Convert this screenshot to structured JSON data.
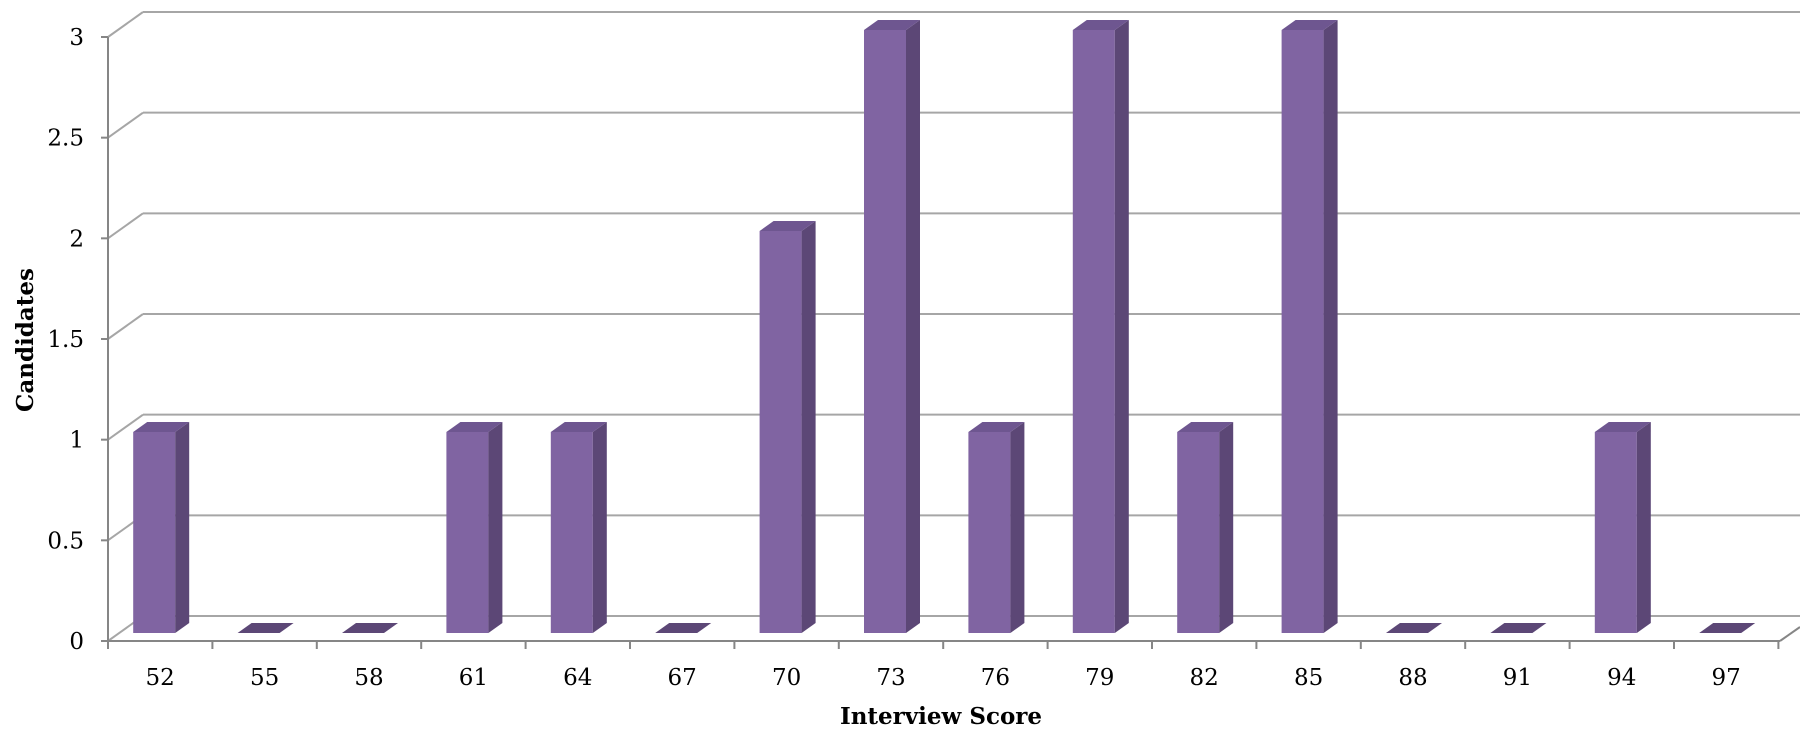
{
  "chart_data": {
    "type": "bar",
    "style": "3d-column",
    "categories": [
      "52",
      "55",
      "58",
      "61",
      "64",
      "67",
      "70",
      "73",
      "76",
      "79",
      "82",
      "85",
      "88",
      "91",
      "94",
      "97"
    ],
    "values": [
      1,
      0,
      0,
      1,
      1,
      0,
      2,
      3,
      1,
      3,
      1,
      3,
      0,
      0,
      1,
      0
    ],
    "yticks": [
      "0",
      "0.5",
      "1",
      "1.5",
      "2",
      "2.5",
      "3"
    ],
    "xlabel": "Interview Score",
    "ylabel": "Candidates",
    "ylim": [
      0,
      3
    ],
    "grid": true,
    "legend": "none",
    "colors": {
      "bar_front": "#8064a2",
      "bar_side": "#5c4776",
      "bar_top": "#6e5690",
      "gridline": "#a6a6a6",
      "axis": "#868686"
    }
  }
}
